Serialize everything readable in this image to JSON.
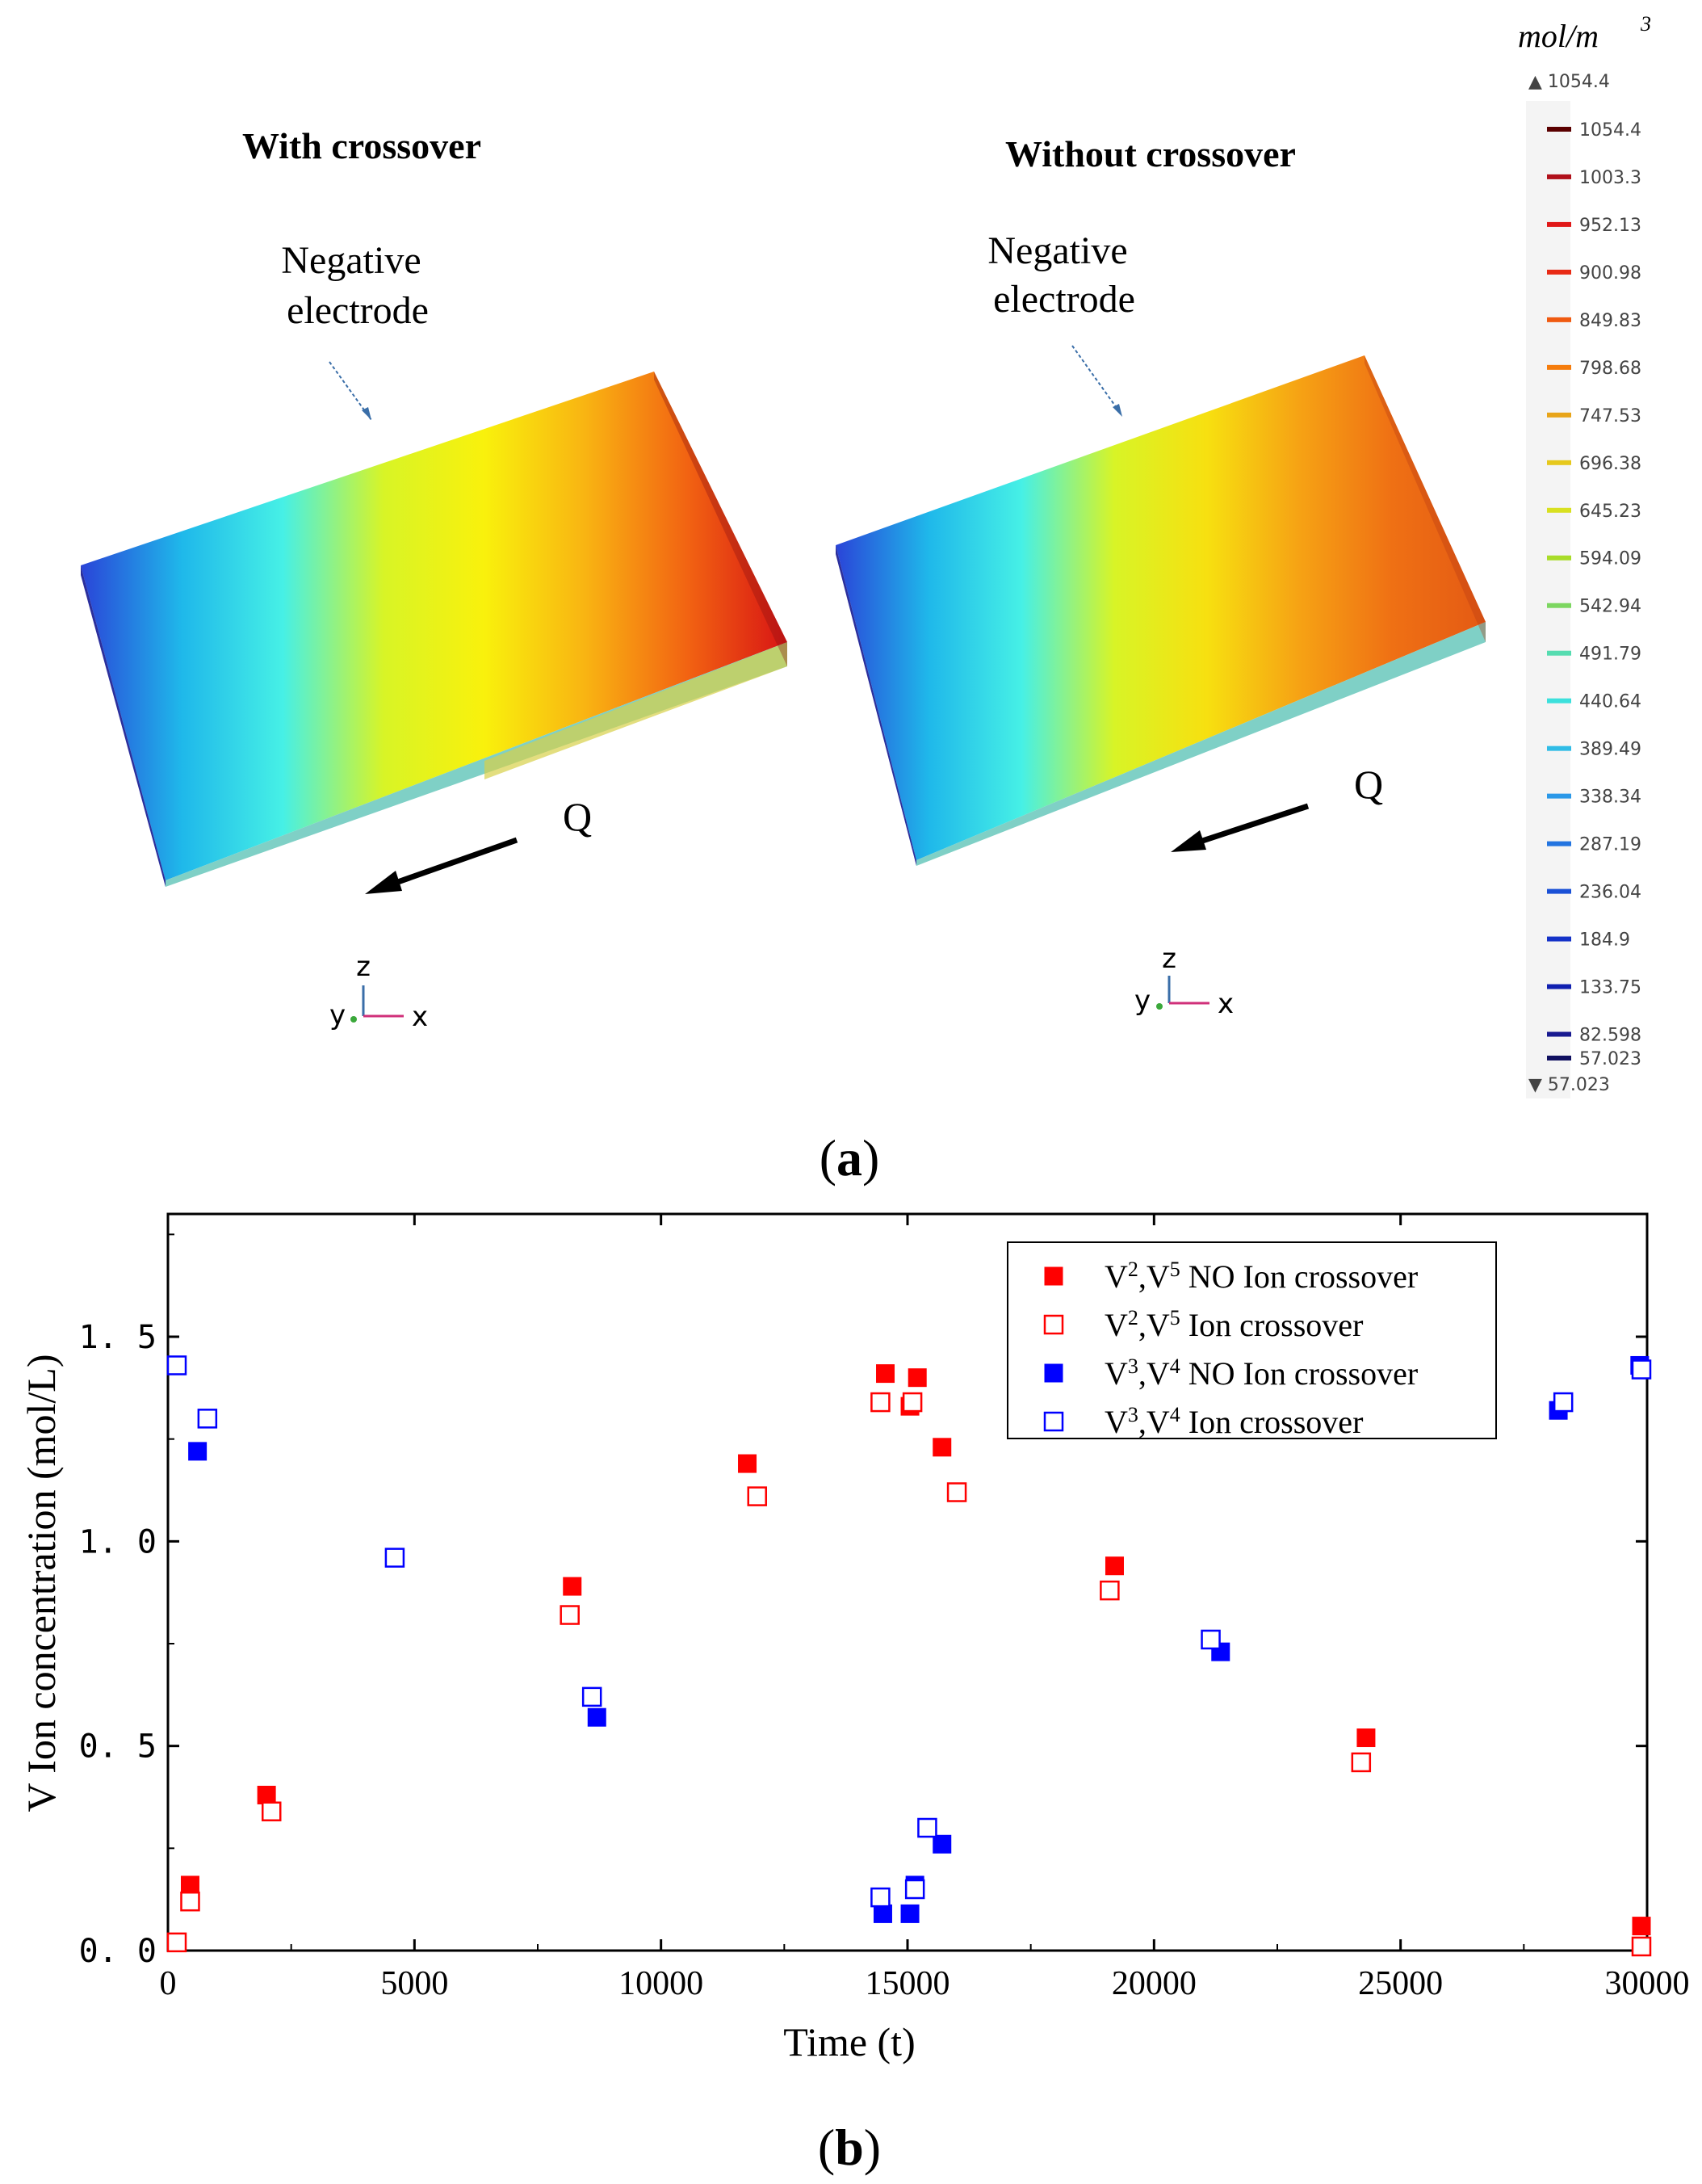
{
  "panel_a": {
    "label": "a",
    "left_title": "With crossover",
    "right_title": "Without crossover",
    "electrode_label_line1": "Negative",
    "electrode_label_line2": "electrode",
    "electrode_label_right_line2": "electrode",
    "flow_label": "Q",
    "axis_z": "z",
    "axis_y": "y",
    "axis_x": "x",
    "colorbar": {
      "unit": "mol/m",
      "unit_exp": "3",
      "max_label": "▲ 1054.4",
      "min_label": "▼ 57.023",
      "ticks": [
        "1054.4",
        "1003.3",
        "952.13",
        "900.98",
        "849.83",
        "798.68",
        "747.53",
        "696.38",
        "645.23",
        "594.09",
        "542.94",
        "491.79",
        "440.64",
        "389.49",
        "338.34",
        "287.19",
        "236.04",
        "184.9",
        "133.75",
        "82.598",
        "57.023"
      ],
      "tick_values": [
        1054.4,
        1003.3,
        952.13,
        900.98,
        849.83,
        798.68,
        747.53,
        696.38,
        645.23,
        594.09,
        542.94,
        491.79,
        440.64,
        389.49,
        338.34,
        287.19,
        236.04,
        184.9,
        133.75,
        82.598,
        57.023
      ],
      "tick_colors": [
        "#5a0000",
        "#b0101a",
        "#e01818",
        "#e82a14",
        "#ef5a10",
        "#f57c0c",
        "#e8a418",
        "#e6c81c",
        "#d8e020",
        "#a8dc28",
        "#7cd660",
        "#56dcb0",
        "#3ce0dc",
        "#30bce6",
        "#2a98e8",
        "#2274e0",
        "#1a50d6",
        "#1432c8",
        "#1020b0",
        "#181a90",
        "#101060"
      ]
    },
    "gradient_colors": [
      "#2a44d8",
      "#1fb8ea",
      "#46f0e6",
      "#d8f426",
      "#f9f10c",
      "#f9b412",
      "#f26412",
      "#d81414"
    ],
    "gradient_colors_right": [
      "#2a44d8",
      "#1fb8ea",
      "#46f0e6",
      "#d8f426",
      "#f7e010",
      "#f6a214",
      "#ef7014",
      "#e45a14"
    ]
  },
  "panel_b": {
    "label": "b"
  },
  "chart_data": {
    "type": "scatter",
    "title": "",
    "xlabel": "Time (t)",
    "ylabel": "V Ion concentration (mol/L)",
    "xlim": [
      0,
      30000
    ],
    "ylim": [
      0,
      1.8
    ],
    "xticks": [
      0,
      5000,
      10000,
      15000,
      20000,
      25000,
      30000
    ],
    "xtick_labels": [
      "0",
      "5000",
      "10000",
      "15000",
      "20000",
      "25000",
      "30000"
    ],
    "yticks": [
      0,
      0.5,
      1.0,
      1.5
    ],
    "ytick_labels": [
      "0. 0",
      "0. 5",
      "1. 0",
      "1. 5"
    ],
    "legend_position": "top-right",
    "series": [
      {
        "name": "V2,V5 NO Ion crossover",
        "legend_main": "V",
        "legend_sup1": "2",
        "legend_mid": ",V",
        "legend_sup2": "5",
        "legend_tail": " NO Ion crossover",
        "color": "#ff0000",
        "filled": true,
        "points": [
          [
            450,
            0.16
          ],
          [
            2000,
            0.38
          ],
          [
            8200,
            0.89
          ],
          [
            11750,
            1.19
          ],
          [
            14550,
            1.41
          ],
          [
            15050,
            1.33
          ],
          [
            15200,
            1.4
          ],
          [
            15700,
            1.23
          ],
          [
            19200,
            0.94
          ],
          [
            24300,
            0.52
          ],
          [
            30000,
            0.06
          ]
        ]
      },
      {
        "name": "V2,V5 Ion crossover",
        "legend_main": "V",
        "legend_sup1": "2",
        "legend_mid": ",V",
        "legend_sup2": "5",
        "legend_tail": " Ion crossover",
        "color": "#ff0000",
        "filled": false,
        "points": [
          [
            100,
            0.02
          ],
          [
            450,
            0.12
          ],
          [
            2100,
            0.34
          ],
          [
            8150,
            0.82
          ],
          [
            11950,
            1.11
          ],
          [
            14450,
            1.34
          ],
          [
            15100,
            1.34
          ],
          [
            16000,
            1.12
          ],
          [
            19100,
            0.88
          ],
          [
            24200,
            0.46
          ],
          [
            30000,
            0.01
          ]
        ]
      },
      {
        "name": "V3,V4 NO Ion crossover",
        "legend_main": "V",
        "legend_sup1": "3",
        "legend_mid": ",V",
        "legend_sup2": "4",
        "legend_tail": " NO Ion crossover",
        "color": "#0000ff",
        "filled": true,
        "points": [
          [
            600,
            1.22
          ],
          [
            8700,
            0.57
          ],
          [
            14500,
            0.09
          ],
          [
            15050,
            0.09
          ],
          [
            15150,
            0.16
          ],
          [
            15700,
            0.26
          ],
          [
            21350,
            0.73
          ],
          [
            28200,
            1.32
          ],
          [
            29850,
            1.43
          ]
        ]
      },
      {
        "name": "V3,V4 Ion crossover",
        "legend_main": "V",
        "legend_sup1": "3",
        "legend_mid": ",V",
        "legend_sup2": "4",
        "legend_tail": " Ion crossover",
        "color": "#0000ff",
        "filled": false,
        "points": [
          [
            50,
            1.43
          ],
          [
            800,
            1.3
          ],
          [
            4600,
            0.96
          ],
          [
            8600,
            0.62
          ],
          [
            14450,
            0.13
          ],
          [
            15150,
            0.15
          ],
          [
            15400,
            0.3
          ],
          [
            21150,
            0.76
          ],
          [
            28300,
            1.34
          ],
          [
            29900,
            1.42
          ]
        ]
      }
    ]
  }
}
